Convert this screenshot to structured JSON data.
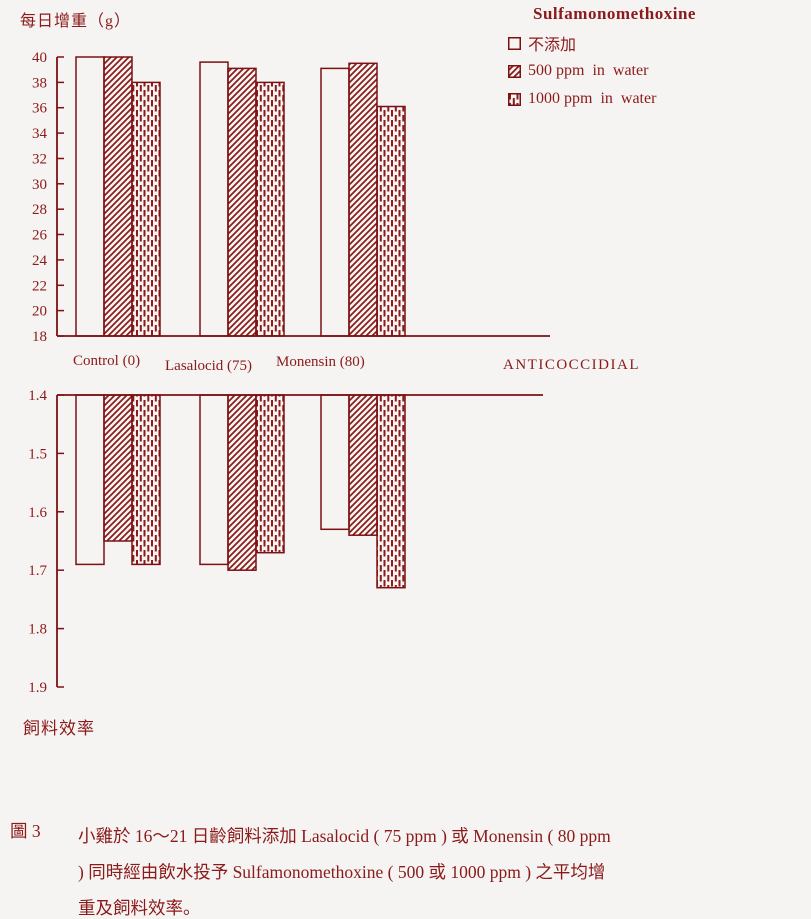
{
  "top_chart_title": "每日增重（g）",
  "bottom_chart_title": "飼料效率",
  "x_axis_label": "ANTICOCCIDIAL",
  "legend": {
    "title": "Sulfamonomethoxine",
    "items": [
      {
        "label": "不添加",
        "pattern": "plain"
      },
      {
        "label": "500 ppm  in  water",
        "pattern": "hatch"
      },
      {
        "label": "1000 ppm  in  water",
        "pattern": "dots"
      }
    ]
  },
  "caption": {
    "figure": "圖 3",
    "lines": [
      "小雞於 16～21 日齡飼料添加 Lasalocid ( 75 ppm ) 或 Monensin ( 80 ppm",
      ") 同時經由飲水投予 Sulfamonomethoxine ( 500 或 1000 ppm ) 之平均增",
      "重及飼料效率。"
    ]
  },
  "colors": {
    "accent": "#8b1a1a",
    "line": "#7c1113",
    "background": "#f5f4f2"
  },
  "chart_data": [
    {
      "type": "bar",
      "title": "每日增重（g）",
      "ylabel": "每日增重（g）",
      "xlabel": "ANTICOCCIDIAL",
      "categories": [
        "Control (0)",
        "Lasalocid (75)",
        "Monensin (80)"
      ],
      "series": [
        {
          "name": "不添加",
          "pattern": "plain",
          "values": [
            40.0,
            39.6,
            39.1
          ]
        },
        {
          "name": "500 ppm in water",
          "pattern": "hatch",
          "values": [
            40.0,
            39.1,
            39.5
          ]
        },
        {
          "name": "1000 ppm in water",
          "pattern": "dots",
          "values": [
            38.0,
            38.0,
            36.1
          ]
        }
      ],
      "ylim": [
        18,
        40
      ],
      "tick_step": 2,
      "inverted": false,
      "grid": false,
      "legend_position": "top-right"
    },
    {
      "type": "bar",
      "title": "飼料效率",
      "ylabel": "飼料效率",
      "xlabel": "ANTICOCCIDIAL",
      "categories": [
        "Control (0)",
        "Lasalocid (75)",
        "Monensin (80)"
      ],
      "series": [
        {
          "name": "不添加",
          "pattern": "plain",
          "values": [
            1.69,
            1.69,
            1.63
          ]
        },
        {
          "name": "500 ppm in water",
          "pattern": "hatch",
          "values": [
            1.65,
            1.7,
            1.64
          ]
        },
        {
          "name": "1000 ppm in water",
          "pattern": "dots",
          "values": [
            1.69,
            1.67,
            1.73
          ]
        }
      ],
      "ylim": [
        1.4,
        1.9
      ],
      "tick_step": 0.1,
      "inverted": true,
      "grid": false,
      "legend_position": "none"
    }
  ]
}
